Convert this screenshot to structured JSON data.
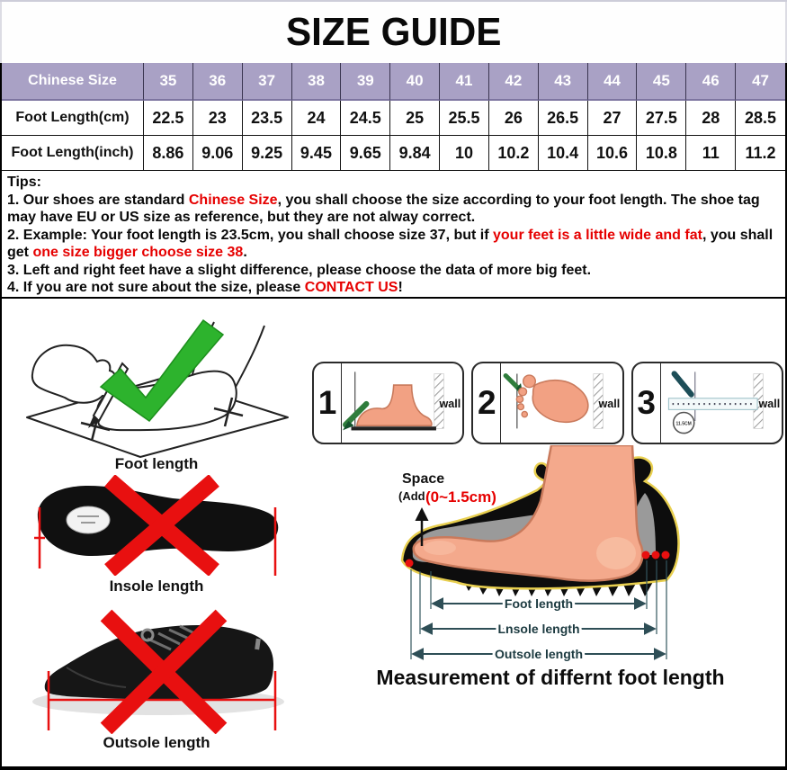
{
  "title": "SIZE GUIDE",
  "colors": {
    "header_purple": "#a9a1c5",
    "highlight_red": "#e60000",
    "check_green": "#2db32d",
    "skin": "#f2a183",
    "pencil_green": "#2f7d3c",
    "dimension_teal": "#2e4e56"
  },
  "size_table": {
    "header_label": "Chinese Size",
    "sizes": [
      "35",
      "36",
      "37",
      "38",
      "39",
      "40",
      "41",
      "42",
      "43",
      "44",
      "45",
      "46",
      "47"
    ],
    "rows": [
      {
        "label": "Foot Length(cm)",
        "values": [
          "22.5",
          "23",
          "23.5",
          "24",
          "24.5",
          "25",
          "25.5",
          "26",
          "26.5",
          "27",
          "27.5",
          "28",
          "28.5"
        ]
      },
      {
        "label": "Foot Length(inch)",
        "values": [
          "8.86",
          "9.06",
          "9.25",
          "9.45",
          "9.65",
          "9.84",
          "10",
          "10.2",
          "10.4",
          "10.6",
          "10.8",
          "11",
          "11.2"
        ]
      }
    ]
  },
  "tips": {
    "heading": "Tips:",
    "lines": [
      {
        "segments": [
          {
            "text": "1. Our shoes are standard ",
            "red": false
          },
          {
            "text": "Chinese Size",
            "red": true
          },
          {
            "text": ", you shall choose the size according to your foot length. The shoe tag may have EU or US size as reference, but they are not alway correct.",
            "red": false
          }
        ]
      },
      {
        "segments": [
          {
            "text": "2. Example: Your foot length is 23.5cm, you shall choose size 37, but if ",
            "red": false
          },
          {
            "text": "your feet is a little wide and fat",
            "red": true
          },
          {
            "text": ", you shall get ",
            "red": false
          },
          {
            "text": "one size bigger choose size 38",
            "red": true
          },
          {
            "text": ".",
            "red": false
          }
        ]
      },
      {
        "segments": [
          {
            "text": "3. Left and right feet have a slight difference, please choose the data of more big feet.",
            "red": false
          }
        ]
      },
      {
        "segments": [
          {
            "text": "4. If you are not sure about the size, please ",
            "red": false
          },
          {
            "text": "CONTACT US",
            "red": true
          },
          {
            "text": "!",
            "red": false
          }
        ]
      }
    ]
  },
  "measure_guide": {
    "foot_length_label": "Foot length",
    "insole_length_label": "Insole length",
    "outsole_length_label": "Outsole length",
    "steps": [
      {
        "number": "1",
        "wall_label": "wall"
      },
      {
        "number": "2",
        "wall_label": "wall"
      },
      {
        "number": "3",
        "wall_label": "wall",
        "ruler_note": "11.5CM"
      }
    ],
    "diagram": {
      "space_label": "Space",
      "add_label": "(Add",
      "range_label": "(0~1.5cm)",
      "foot_length": "Foot length",
      "insole_length": "Lnsole length",
      "outsole_length": "Outsole length",
      "caption": "Measurement of differnt foot length"
    }
  }
}
